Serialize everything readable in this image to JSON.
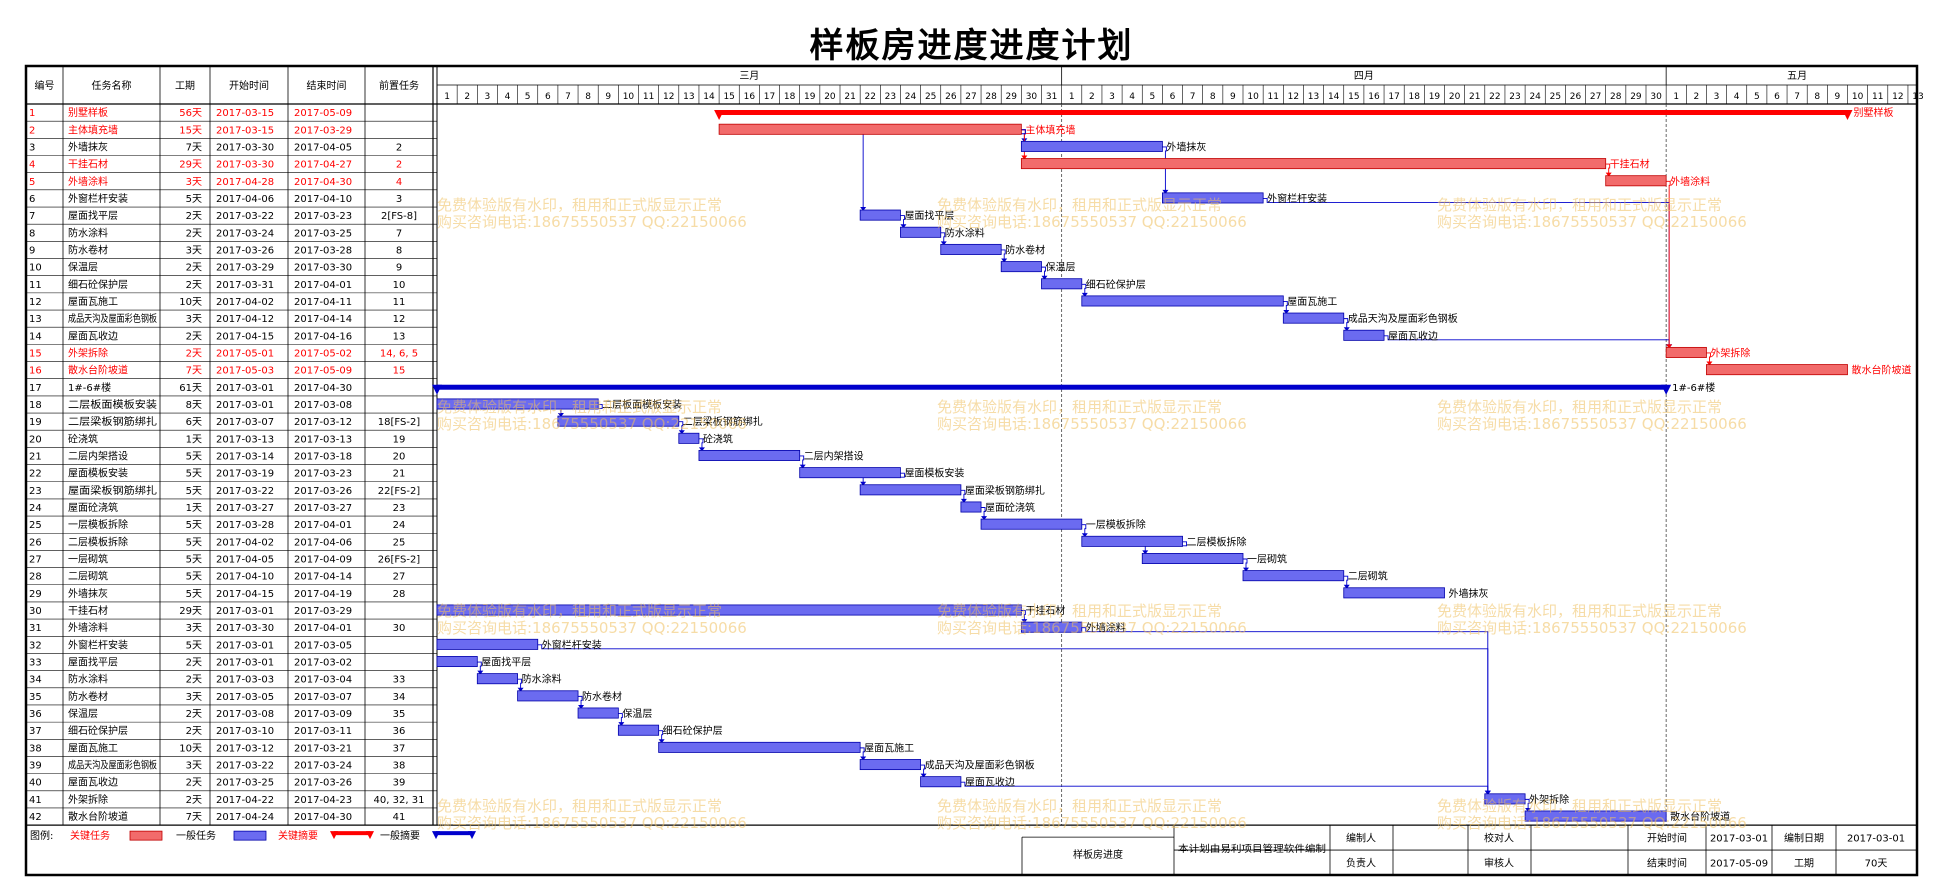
{
  "title": "样板房进度进度计划",
  "columns": {
    "id": "编号",
    "name": "任务名称",
    "dur": "工期",
    "start": "开始时间",
    "end": "结束时间",
    "pred": "前置任务"
  },
  "months": [
    {
      "label": "三月",
      "days": 31
    },
    {
      "label": "四月",
      "days": 30
    },
    {
      "label": "五月",
      "days": 13
    }
  ],
  "colors": {
    "critical": "#f26b6b",
    "criticalText": "#ff0000",
    "normal": "#6b6bf0",
    "link": "#0000cc",
    "summaryNormal": "#0000cc",
    "summaryCritical": "#ff0000"
  },
  "chart_data": {
    "type": "gantt",
    "timeline_start": "2017-03-01",
    "timeline_end": "2017-05-13",
    "tasks": [
      {
        "id": "1",
        "name": "别墅样板",
        "dur": "56天",
        "start": "2017-03-15",
        "end": "2017-05-09",
        "pred": "",
        "kind": "summary",
        "critical": true,
        "label": "别墅样板"
      },
      {
        "id": "2",
        "name": "主体填充墙",
        "dur": "15天",
        "start": "2017-03-15",
        "end": "2017-03-29",
        "pred": "",
        "kind": "task",
        "critical": true,
        "label": "主体填充墙"
      },
      {
        "id": "3",
        "name": "外墙抹灰",
        "dur": "7天",
        "start": "2017-03-30",
        "end": "2017-04-05",
        "pred": "2",
        "kind": "task",
        "critical": false,
        "label": "外墙抹灰"
      },
      {
        "id": "4",
        "name": "干挂石材",
        "dur": "29天",
        "start": "2017-03-30",
        "end": "2017-04-27",
        "pred": "2",
        "kind": "task",
        "critical": true,
        "label": "干挂石材"
      },
      {
        "id": "5",
        "name": "外墙涂料",
        "dur": "3天",
        "start": "2017-04-28",
        "end": "2017-04-30",
        "pred": "4",
        "kind": "task",
        "critical": true,
        "label": "外墙涂料"
      },
      {
        "id": "6",
        "name": "外窗栏杆安装",
        "dur": "5天",
        "start": "2017-04-06",
        "end": "2017-04-10",
        "pred": "3",
        "kind": "task",
        "critical": false,
        "label": "外窗栏杆安装"
      },
      {
        "id": "7",
        "name": "屋面找平层",
        "dur": "2天",
        "start": "2017-03-22",
        "end": "2017-03-23",
        "pred": "2[FS-8]",
        "kind": "task",
        "critical": false,
        "label": "屋面找平层"
      },
      {
        "id": "8",
        "name": "防水涂料",
        "dur": "2天",
        "start": "2017-03-24",
        "end": "2017-03-25",
        "pred": "7",
        "kind": "task",
        "critical": false,
        "label": "防水涂料"
      },
      {
        "id": "9",
        "name": "防水卷材",
        "dur": "3天",
        "start": "2017-03-26",
        "end": "2017-03-28",
        "pred": "8",
        "kind": "task",
        "critical": false,
        "label": "防水卷材"
      },
      {
        "id": "10",
        "name": "保温层",
        "dur": "2天",
        "start": "2017-03-29",
        "end": "2017-03-30",
        "pred": "9",
        "kind": "task",
        "critical": false,
        "label": "保温层"
      },
      {
        "id": "11",
        "name": "细石砼保护层",
        "dur": "2天",
        "start": "2017-03-31",
        "end": "2017-04-01",
        "pred": "10",
        "kind": "task",
        "critical": false,
        "label": "细石砼保护层"
      },
      {
        "id": "12",
        "name": "屋面瓦施工",
        "dur": "10天",
        "start": "2017-04-02",
        "end": "2017-04-11",
        "pred": "11",
        "kind": "task",
        "critical": false,
        "label": "屋面瓦施工"
      },
      {
        "id": "13",
        "name": "成品天沟及屋面彩色钢板",
        "dur": "3天",
        "start": "2017-04-12",
        "end": "2017-04-14",
        "pred": "12",
        "kind": "task",
        "critical": false,
        "label": "成品天沟及屋面彩色钢板"
      },
      {
        "id": "14",
        "name": "屋面瓦收边",
        "dur": "2天",
        "start": "2017-04-15",
        "end": "2017-04-16",
        "pred": "13",
        "kind": "task",
        "critical": false,
        "label": "屋面瓦收边"
      },
      {
        "id": "15",
        "name": "外架拆除",
        "dur": "2天",
        "start": "2017-05-01",
        "end": "2017-05-02",
        "pred": "14, 6, 5",
        "kind": "task",
        "critical": true,
        "label": "外架拆除"
      },
      {
        "id": "16",
        "name": "散水台阶坡道",
        "dur": "7天",
        "start": "2017-05-03",
        "end": "2017-05-09",
        "pred": "15",
        "kind": "task",
        "critical": true,
        "label": "散水台阶坡道"
      },
      {
        "id": "17",
        "name": "1#-6#楼",
        "dur": "61天",
        "start": "2017-03-01",
        "end": "2017-04-30",
        "pred": "",
        "kind": "summary",
        "critical": false,
        "label": "1#-6#楼"
      },
      {
        "id": "18",
        "name": "二层板面模板安装",
        "dur": "8天",
        "start": "2017-03-01",
        "end": "2017-03-08",
        "pred": "",
        "kind": "task",
        "critical": false,
        "label": "二层板面模板安装"
      },
      {
        "id": "19",
        "name": "二层梁板钢筋绑扎",
        "dur": "6天",
        "start": "2017-03-07",
        "end": "2017-03-12",
        "pred": "18[FS-2]",
        "kind": "task",
        "critical": false,
        "label": "二层梁板钢筋绑扎"
      },
      {
        "id": "20",
        "name": "砼浇筑",
        "dur": "1天",
        "start": "2017-03-13",
        "end": "2017-03-13",
        "pred": "19",
        "kind": "task",
        "critical": false,
        "label": "砼浇筑"
      },
      {
        "id": "21",
        "name": "二层内架搭设",
        "dur": "5天",
        "start": "2017-03-14",
        "end": "2017-03-18",
        "pred": "20",
        "kind": "task",
        "critical": false,
        "label": "二层内架搭设"
      },
      {
        "id": "22",
        "name": "屋面模板安装",
        "dur": "5天",
        "start": "2017-03-19",
        "end": "2017-03-23",
        "pred": "21",
        "kind": "task",
        "critical": false,
        "label": "屋面模板安装"
      },
      {
        "id": "23",
        "name": "屋面梁板钢筋绑扎",
        "dur": "5天",
        "start": "2017-03-22",
        "end": "2017-03-26",
        "pred": "22[FS-2]",
        "kind": "task",
        "critical": false,
        "label": "屋面梁板钢筋绑扎"
      },
      {
        "id": "24",
        "name": "屋面砼浇筑",
        "dur": "1天",
        "start": "2017-03-27",
        "end": "2017-03-27",
        "pred": "23",
        "kind": "task",
        "critical": false,
        "label": "屋面砼浇筑"
      },
      {
        "id": "25",
        "name": "一层模板拆除",
        "dur": "5天",
        "start": "2017-03-28",
        "end": "2017-04-01",
        "pred": "24",
        "kind": "task",
        "critical": false,
        "label": "一层模板拆除"
      },
      {
        "id": "26",
        "name": "二层模板拆除",
        "dur": "5天",
        "start": "2017-04-02",
        "end": "2017-04-06",
        "pred": "25",
        "kind": "task",
        "critical": false,
        "label": "二层模板拆除"
      },
      {
        "id": "27",
        "name": "一层砌筑",
        "dur": "5天",
        "start": "2017-04-05",
        "end": "2017-04-09",
        "pred": "26[FS-2]",
        "kind": "task",
        "critical": false,
        "label": "一层砌筑"
      },
      {
        "id": "28",
        "name": "二层砌筑",
        "dur": "5天",
        "start": "2017-04-10",
        "end": "2017-04-14",
        "pred": "27",
        "kind": "task",
        "critical": false,
        "label": "二层砌筑"
      },
      {
        "id": "29",
        "name": "外墙抹灰",
        "dur": "5天",
        "start": "2017-04-15",
        "end": "2017-04-19",
        "pred": "28",
        "kind": "task",
        "critical": false,
        "label": "外墙抹灰"
      },
      {
        "id": "30",
        "name": "干挂石材",
        "dur": "29天",
        "start": "2017-03-01",
        "end": "2017-03-29",
        "pred": "",
        "kind": "task",
        "critical": false,
        "label": "干挂石材"
      },
      {
        "id": "31",
        "name": "外墙涂料",
        "dur": "3天",
        "start": "2017-03-30",
        "end": "2017-04-01",
        "pred": "30",
        "kind": "task",
        "critical": false,
        "label": "外墙涂料"
      },
      {
        "id": "32",
        "name": "外窗栏杆安装",
        "dur": "5天",
        "start": "2017-03-01",
        "end": "2017-03-05",
        "pred": "",
        "kind": "task",
        "critical": false,
        "label": "外窗栏杆安装"
      },
      {
        "id": "33",
        "name": "屋面找平层",
        "dur": "2天",
        "start": "2017-03-01",
        "end": "2017-03-02",
        "pred": "",
        "kind": "task",
        "critical": false,
        "label": "屋面找平层"
      },
      {
        "id": "34",
        "name": "防水涂料",
        "dur": "2天",
        "start": "2017-03-03",
        "end": "2017-03-04",
        "pred": "33",
        "kind": "task",
        "critical": false,
        "label": "防水涂料"
      },
      {
        "id": "35",
        "name": "防水卷材",
        "dur": "3天",
        "start": "2017-03-05",
        "end": "2017-03-07",
        "pred": "34",
        "kind": "task",
        "critical": false,
        "label": "防水卷材"
      },
      {
        "id": "36",
        "name": "保温层",
        "dur": "2天",
        "start": "2017-03-08",
        "end": "2017-03-09",
        "pred": "35",
        "kind": "task",
        "critical": false,
        "label": "保温层"
      },
      {
        "id": "37",
        "name": "细石砼保护层",
        "dur": "2天",
        "start": "2017-03-10",
        "end": "2017-03-11",
        "pred": "36",
        "kind": "task",
        "critical": false,
        "label": "细石砼保护层"
      },
      {
        "id": "38",
        "name": "屋面瓦施工",
        "dur": "10天",
        "start": "2017-03-12",
        "end": "2017-03-21",
        "pred": "37",
        "kind": "task",
        "critical": false,
        "label": "屋面瓦施工"
      },
      {
        "id": "39",
        "name": "成品天沟及屋面彩色钢板",
        "dur": "3天",
        "start": "2017-03-22",
        "end": "2017-03-24",
        "pred": "38",
        "kind": "task",
        "critical": false,
        "label": "成品天沟及屋面彩色钢板"
      },
      {
        "id": "40",
        "name": "屋面瓦收边",
        "dur": "2天",
        "start": "2017-03-25",
        "end": "2017-03-26",
        "pred": "39",
        "kind": "task",
        "critical": false,
        "label": "屋面瓦收边"
      },
      {
        "id": "41",
        "name": "外架拆除",
        "dur": "2天",
        "start": "2017-04-22",
        "end": "2017-04-23",
        "pred": "40, 32, 31",
        "kind": "task",
        "critical": false,
        "label": "外架拆除"
      },
      {
        "id": "42",
        "name": "散水台阶坡道",
        "dur": "7天",
        "start": "2017-04-24",
        "end": "2017-04-30",
        "pred": "41",
        "kind": "task",
        "critical": false,
        "label": "散水台阶坡道"
      }
    ]
  },
  "legend": {
    "label": "图例:",
    "critical_task": "关键任务",
    "normal_task": "一般任务",
    "critical_summary": "关键摘要",
    "normal_summary": "一般摘要"
  },
  "footer": {
    "project": "样板房进度",
    "software": "本计划由易利项目管理软件编制",
    "editor": "编制人",
    "owner": "负责人",
    "checker": "校对人",
    "reviewer": "审核人",
    "start_label": "开始时间",
    "start_value": "2017-03-01",
    "end_label": "结束时间",
    "end_value": "2017-05-09",
    "date_label": "编制日期",
    "date_value": "2017-03-01",
    "dur_label": "工期",
    "dur_value": "70天"
  },
  "watermark": {
    "line1": "免费体验版有水印，租用和正式版显示正常",
    "line2": "购买咨询电话:18675550537 QQ:22150066"
  }
}
